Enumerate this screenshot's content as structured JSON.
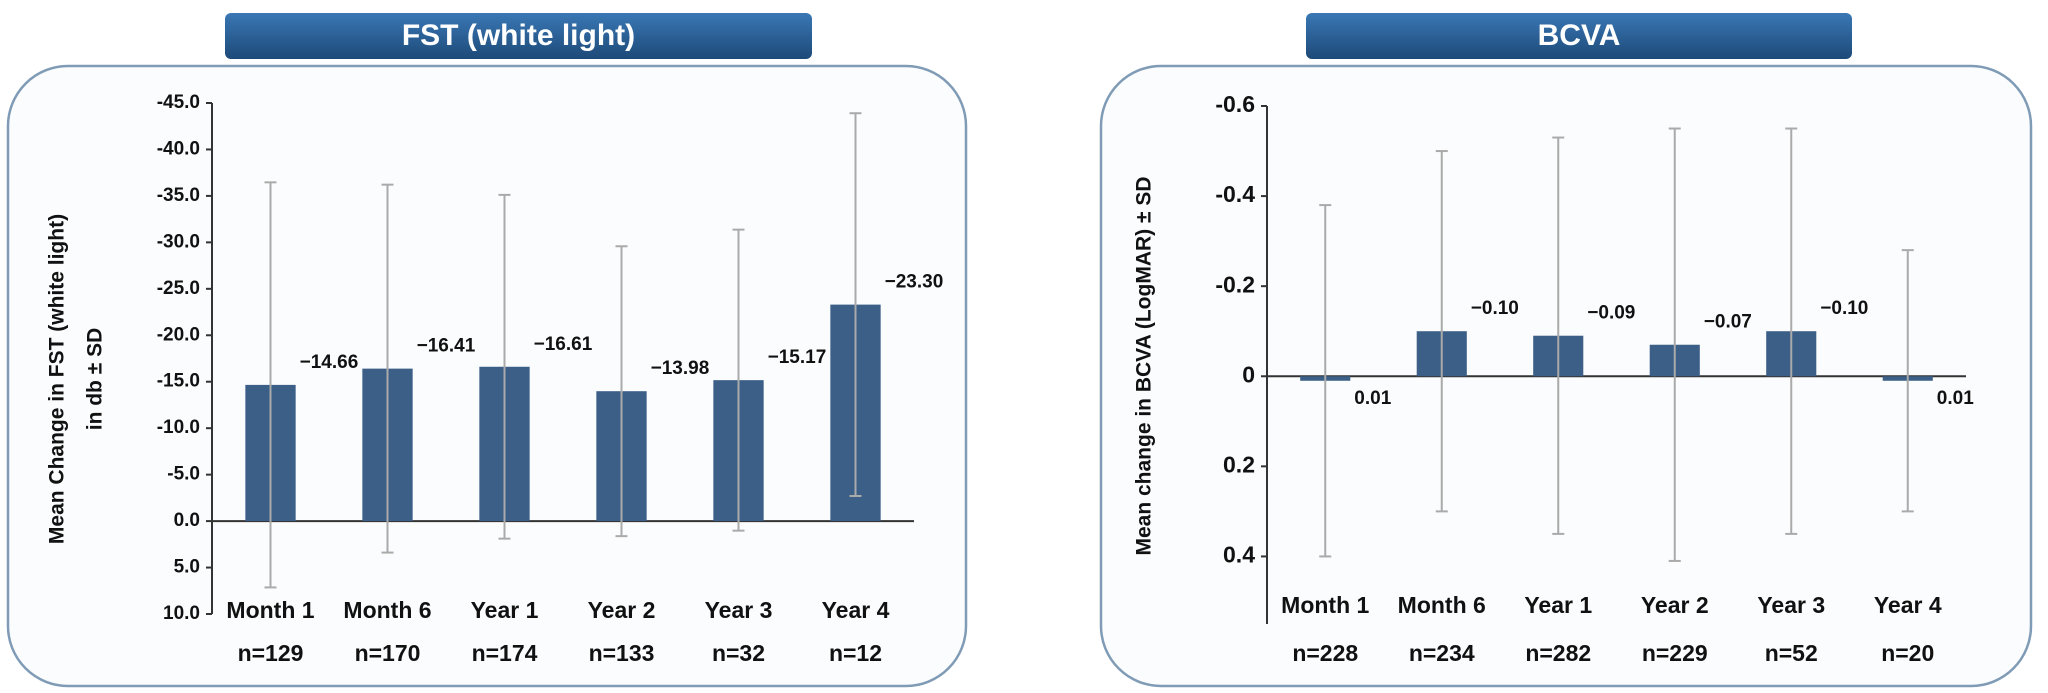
{
  "chart_data": [
    {
      "type": "bar",
      "title": "FST (white light)",
      "ylabel": [
        "Mean Change in FST (white light)",
        "in db ± SD"
      ],
      "categories": [
        "Month 1",
        "Month 6",
        "Year 1",
        "Year 2",
        "Year 3",
        "Year 4"
      ],
      "n_labels": [
        "n=129",
        "n=170",
        "n=174",
        "n=133",
        "n=32",
        "n=12"
      ],
      "values": [
        -14.66,
        -16.41,
        -16.61,
        -13.98,
        -15.17,
        -23.3
      ],
      "value_labels": [
        "−14.66",
        "−16.41",
        "−16.61",
        "−13.98",
        "−15.17",
        "−23.30"
      ],
      "sd": [
        21.8,
        19.8,
        18.5,
        15.6,
        16.2,
        20.6
      ],
      "color": "#3b5f87",
      "error_color": "#aaaaaa",
      "ylim": [
        -45,
        10
      ],
      "yticks": [
        {
          "value": -45,
          "label": "-45.0"
        },
        {
          "value": -40,
          "label": "-40.0"
        },
        {
          "value": -35,
          "label": "-35.0"
        },
        {
          "value": -30,
          "label": "-30.0"
        },
        {
          "value": -25,
          "label": "-25.0"
        },
        {
          "value": -20,
          "label": "-20.0"
        },
        {
          "value": -15,
          "label": "-15.0"
        },
        {
          "value": -10,
          "label": "-10.0"
        },
        {
          "value": -5,
          "label": "-5.0"
        },
        {
          "value": 0,
          "label": "0.0"
        },
        {
          "value": 5,
          "label": "5.0"
        },
        {
          "value": 10,
          "label": "10.0"
        }
      ]
    },
    {
      "type": "bar",
      "title": "BCVA",
      "ylabel": [
        "Mean change in BCVA (LogMAR) ± SD"
      ],
      "categories": [
        "Month 1",
        "Month 6",
        "Year 1",
        "Year 2",
        "Year 3",
        "Year 4"
      ],
      "n_labels": [
        "n=228",
        "n=234",
        "n=282",
        "n=229",
        "n=52",
        "n=20"
      ],
      "values": [
        0.01,
        -0.1,
        -0.09,
        -0.07,
        -0.1,
        0.01
      ],
      "value_labels": [
        "0.01",
        "−0.10",
        "−0.09",
        "−0.07",
        "−0.10",
        "0.01"
      ],
      "sd": [
        0.39,
        0.4,
        0.44,
        0.48,
        0.45,
        0.29
      ],
      "color": "#3b5f87",
      "error_color": "#aaaaaa",
      "ylim": [
        -0.6,
        0.55
      ],
      "yticks": [
        -0.6,
        -0.4,
        -0.2,
        0,
        0.2,
        0.4
      ]
    }
  ]
}
